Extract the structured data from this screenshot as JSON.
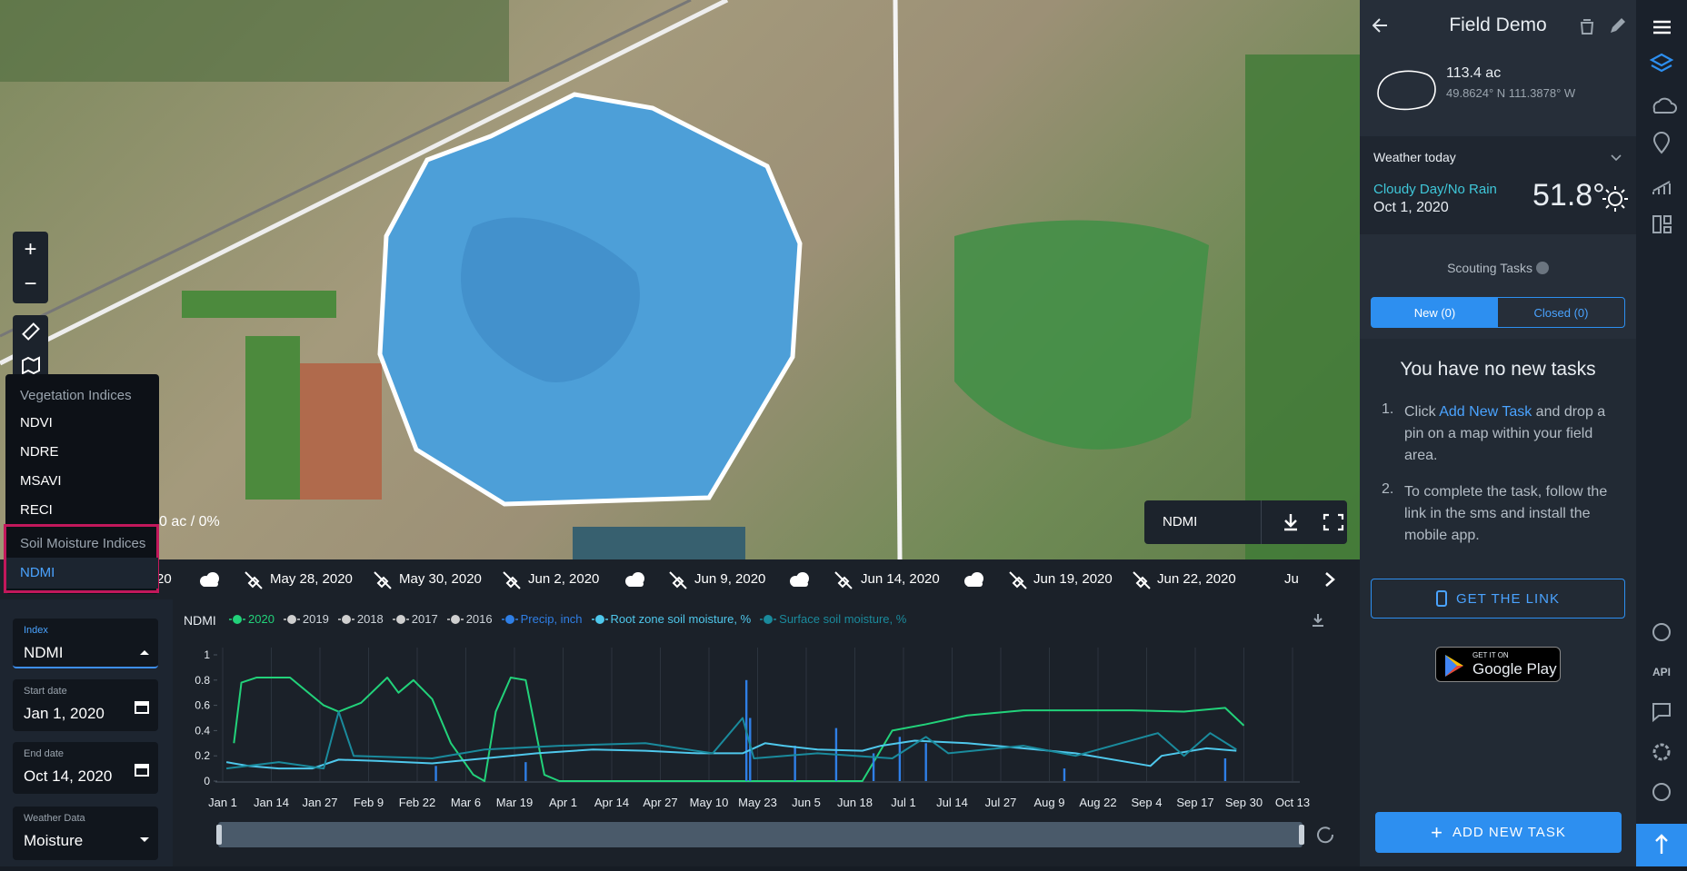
{
  "map": {
    "zoom_in": "+",
    "zoom_out": "−",
    "area_label": "0 ac / 0%",
    "layer": "NDMI"
  },
  "index_menu": {
    "groups": [
      {
        "title": "Vegetation Indices",
        "items": [
          "NDVI",
          "NDRE",
          "MSAVI",
          "RECI"
        ]
      },
      {
        "title": "Soil Moisture Indices",
        "items": [
          "NDMI"
        ]
      }
    ]
  },
  "timeline": {
    "dates": [
      "20",
      "May 28, 2020",
      "May 30, 2020",
      "Jun 2, 2020",
      "Jun 9, 2020",
      "Jun 14, 2020",
      "Jun 19, 2020",
      "Jun 22, 2020",
      "Ju"
    ]
  },
  "form": {
    "index": {
      "label": "Index",
      "value": "NDMI"
    },
    "start_date": {
      "label": "Start date",
      "value": "Jan 1, 2020"
    },
    "end_date": {
      "label": "End date",
      "value": "Oct 14, 2020"
    },
    "weather": {
      "label": "Weather Data",
      "value": "Moisture"
    }
  },
  "chart": {
    "type": "line",
    "title": "NDMI",
    "xlim": [
      0,
      286
    ],
    "xticks": [
      {
        "value": 0,
        "label": "Jan 1"
      },
      {
        "value": 13,
        "label": "Jan 14"
      },
      {
        "value": 26,
        "label": "Jan 27"
      },
      {
        "value": 39,
        "label": "Feb 9"
      },
      {
        "value": 52,
        "label": "Feb 22"
      },
      {
        "value": 65,
        "label": "Mar 6"
      },
      {
        "value": 78,
        "label": "Mar 19"
      },
      {
        "value": 91,
        "label": "Apr 1"
      },
      {
        "value": 104,
        "label": "Apr 14"
      },
      {
        "value": 117,
        "label": "Apr 27"
      },
      {
        "value": 130,
        "label": "May 10"
      },
      {
        "value": 143,
        "label": "May 23"
      },
      {
        "value": 156,
        "label": "Jun 5"
      },
      {
        "value": 169,
        "label": "Jun 18"
      },
      {
        "value": 182,
        "label": "Jul 1"
      },
      {
        "value": 195,
        "label": "Jul 14"
      },
      {
        "value": 208,
        "label": "Jul 27"
      },
      {
        "value": 221,
        "label": "Aug 9"
      },
      {
        "value": 234,
        "label": "Aug 22"
      },
      {
        "value": 247,
        "label": "Sep 4"
      },
      {
        "value": 260,
        "label": "Sep 17"
      },
      {
        "value": 273,
        "label": "Sep 30"
      },
      {
        "value": 286,
        "label": "Oct 13"
      }
    ],
    "ylim": [
      0,
      1
    ],
    "yticks": [
      0,
      0.2,
      0.4,
      0.6,
      0.8,
      1
    ],
    "series": [
      {
        "name": "2020",
        "color": "#22d27a",
        "x": [
          3,
          5,
          9,
          18,
          27,
          31,
          37,
          44,
          47,
          51,
          56,
          61,
          67,
          70,
          73,
          77,
          81,
          86,
          90,
          171,
          175,
          179,
          188,
          199,
          214,
          243,
          257,
          268,
          273
        ],
        "values": [
          0.3,
          0.78,
          0.82,
          0.82,
          0.6,
          0.55,
          0.62,
          0.82,
          0.7,
          0.8,
          0.65,
          0.3,
          0.05,
          0,
          0.55,
          0.82,
          0.8,
          0.05,
          0,
          0,
          0.2,
          0.4,
          0.45,
          0.52,
          0.56,
          0.56,
          0.55,
          0.58,
          0.44
        ]
      },
      {
        "name": "2019",
        "color": "#cfcfcf"
      },
      {
        "name": "2018",
        "color": "#cfcfcf"
      },
      {
        "name": "2017",
        "color": "#cfcfcf"
      },
      {
        "name": "2016",
        "color": "#cfcfcf"
      },
      {
        "name": "Precip, inch",
        "color": "#2f7fe6",
        "type": "bar",
        "x": [
          57,
          81,
          140,
          141,
          153,
          164,
          174,
          181,
          188,
          225,
          268
        ],
        "values": [
          0.12,
          0.15,
          0.8,
          0.5,
          0.28,
          0.42,
          0.22,
          0.35,
          0.3,
          0.1,
          0.18
        ]
      },
      {
        "name": "Root zone soil moisture, %",
        "color": "#4fc8ec",
        "x": [
          1,
          7,
          15,
          24,
          31,
          41,
          56,
          70,
          84,
          99,
          113,
          127,
          139,
          145,
          150,
          159,
          171,
          176,
          185,
          199,
          214,
          228,
          248,
          251,
          263,
          271
        ],
        "values": [
          0.15,
          0.12,
          0.1,
          0.1,
          0.17,
          0.16,
          0.14,
          0.18,
          0.22,
          0.25,
          0.24,
          0.22,
          0.22,
          0.3,
          0.28,
          0.25,
          0.24,
          0.28,
          0.32,
          0.3,
          0.26,
          0.22,
          0.12,
          0.2,
          0.26,
          0.24
        ]
      },
      {
        "name": "Surface soil moisture, %",
        "color": "#1a8a9c",
        "x": [
          1,
          15,
          27,
          31,
          35,
          56,
          70,
          90,
          113,
          131,
          139,
          142,
          159,
          179,
          188,
          194,
          214,
          228,
          250,
          257,
          264,
          271
        ],
        "values": [
          0.1,
          0.15,
          0.1,
          0.55,
          0.2,
          0.18,
          0.25,
          0.28,
          0.3,
          0.22,
          0.5,
          0.18,
          0.22,
          0.18,
          0.35,
          0.22,
          0.28,
          0.2,
          0.38,
          0.2,
          0.38,
          0.25
        ]
      }
    ]
  },
  "panel": {
    "title": "Field Demo",
    "area": "113.4 ac",
    "coords": "49.8624° N 111.3878° W",
    "weather": {
      "title": "Weather today",
      "condition": "Cloudy Day/No Rain",
      "date": "Oct 1, 2020",
      "temp": "51.8°"
    },
    "scouting": {
      "title": "Scouting Tasks",
      "tabs": [
        "New (0)",
        "Closed (0)"
      ]
    },
    "empty_title": "You have no new tasks",
    "steps": [
      {
        "before": "Click",
        "link": "Add New Task",
        "after": "and drop a pin on a map within your field area."
      },
      {
        "text": "To complete the task, follow the link in the sms and install the mobile app."
      }
    ],
    "get_link": "GET THE LINK",
    "store": {
      "small": "GET IT ON",
      "big": "Google Play"
    },
    "add_task": "ADD NEW TASK"
  },
  "sidebar": {
    "api": "API"
  }
}
